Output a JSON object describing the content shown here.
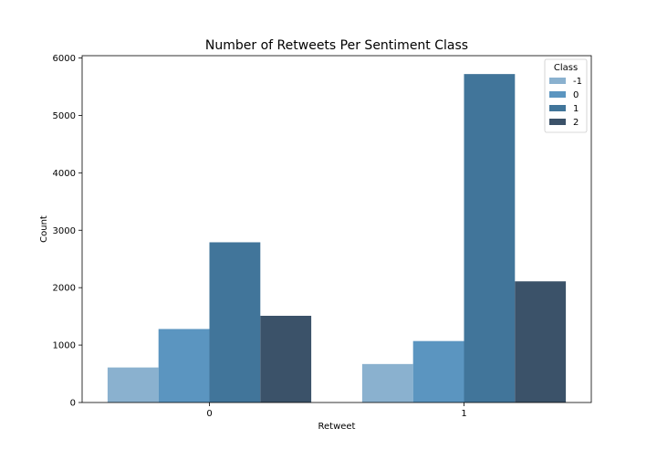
{
  "chart_data": {
    "type": "bar",
    "title": "Number of Retweets Per Sentiment Class",
    "xlabel": "Retweet",
    "ylabel": "Count",
    "categories": [
      "0",
      "1"
    ],
    "series": [
      {
        "name": "-1",
        "color": "#8ab1cf",
        "values": [
          610,
          670
        ]
      },
      {
        "name": "0",
        "color": "#5b95c0",
        "values": [
          1280,
          1070
        ]
      },
      {
        "name": "1",
        "color": "#41759a",
        "values": [
          2790,
          5720
        ]
      },
      {
        "name": "2",
        "color": "#3b5269",
        "values": [
          1510,
          2110
        ]
      }
    ],
    "ylim": [
      0,
      6040
    ],
    "yticks": [
      0,
      1000,
      2000,
      3000,
      4000,
      5000,
      6000
    ],
    "legend": {
      "title": "Class",
      "placement": "top-right"
    },
    "grid": false
  }
}
